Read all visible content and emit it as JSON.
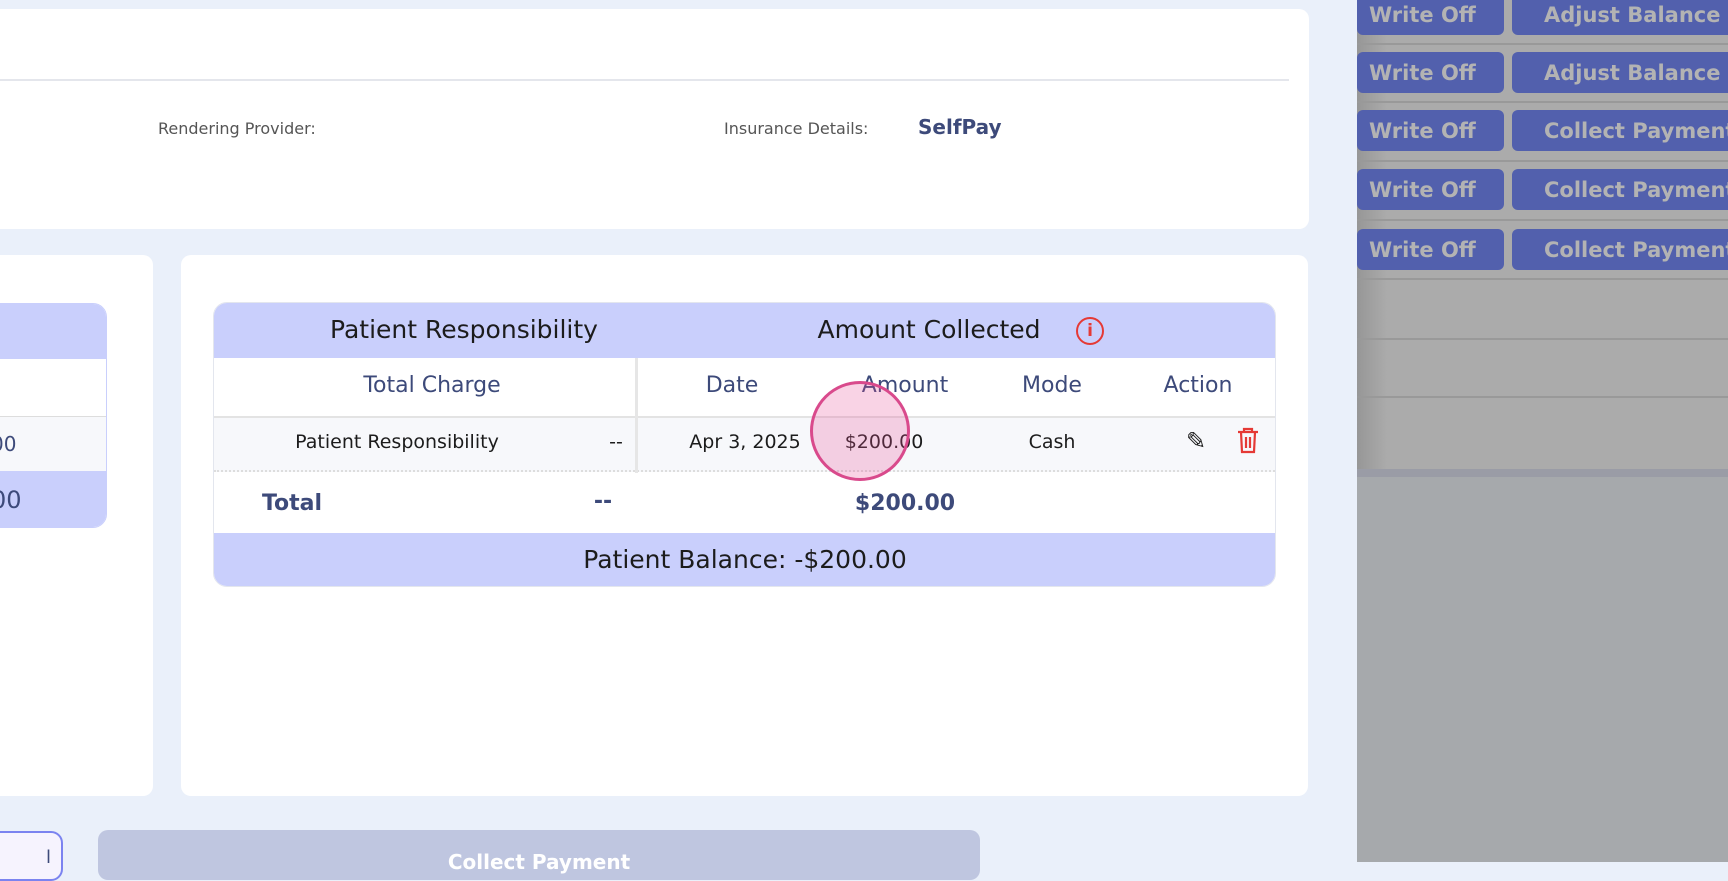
{
  "info": {
    "rendering_provider_label": "Rendering Provider:",
    "insurance_label": "Insurance Details:",
    "insurance_value": "SelfPay"
  },
  "left_table": {
    "row_value": "00",
    "total_value": "00"
  },
  "table": {
    "header_left": "Patient Responsibility",
    "header_right": "Amount Collected",
    "info_icon": "info-circle-icon",
    "columns": [
      "Total Charge",
      "Date",
      "Amount",
      "Mode",
      "Action"
    ],
    "row": {
      "label": "Patient Responsibility",
      "charge": "--",
      "date": "Apr 3, 2025",
      "amount": "$200.00",
      "mode": "Cash"
    },
    "total": {
      "label": "Total",
      "charge": "--",
      "amount": "$200.00"
    },
    "balance": "Patient Balance: -$200.00"
  },
  "footer": {
    "collect_payment": "Collect Payment",
    "left_button": "l"
  },
  "overlay": {
    "rows": [
      {
        "write_off": "Write Off",
        "action": "Adjust Balance"
      },
      {
        "write_off": "Write Off",
        "action": "Adjust Balance"
      },
      {
        "write_off": "Write Off",
        "action": "Collect Payment"
      },
      {
        "write_off": "Write Off",
        "action": "Collect Payment"
      },
      {
        "write_off": "Write Off",
        "action": "Collect Payment"
      }
    ]
  },
  "colors": {
    "header": "#c9cffc",
    "accent": "#3d4a7a",
    "button": "#5260ad",
    "danger": "#e53935"
  }
}
